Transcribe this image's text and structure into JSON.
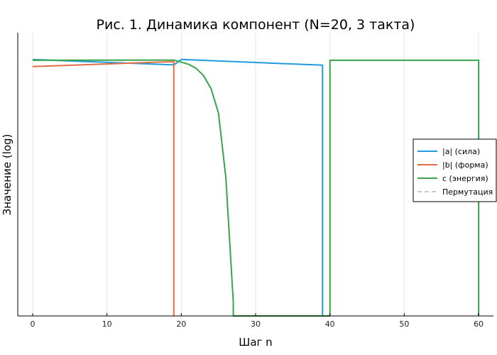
{
  "chart_data": {
    "type": "line",
    "title": "Рис. 1. Динамика компонент (N=20, 3 такта)",
    "xlabel": "Шаг n",
    "ylabel": "Значение (log)",
    "xlim": [
      -2,
      62
    ],
    "xticks": [
      0,
      10,
      20,
      30,
      40,
      50,
      60
    ],
    "ylim": [
      0,
      100
    ],
    "y_tick_labels": "none",
    "grid": "vertical only",
    "legend_position": "right",
    "series": [
      {
        "name": "|a| (сила)",
        "color": "#1f9bde",
        "style": "solid",
        "x": [
          0,
          19,
          20,
          39,
          39
        ],
        "y": [
          95.3,
          93.3,
          95.3,
          93.2,
          0
        ]
      },
      {
        "name": "|b| (форма)",
        "color": "#e26e46",
        "style": "solid",
        "x": [
          0,
          19,
          19
        ],
        "y": [
          92.7,
          94.5,
          0
        ]
      },
      {
        "name": "c (энергия)",
        "color": "#3aa34a",
        "style": "solid",
        "x": [
          0,
          19,
          20,
          21,
          22,
          23,
          24,
          25,
          26,
          27,
          27,
          40,
          40,
          60,
          60
        ],
        "y": [
          95.0,
          95.1,
          94.3,
          93.5,
          92.0,
          89.3,
          84.5,
          75.4,
          51.4,
          5.0,
          0,
          0,
          95.0,
          95.0,
          0
        ]
      },
      {
        "name": "Пермутация",
        "color": "#aaaaaa",
        "style": "dashed",
        "x": [],
        "y": []
      }
    ]
  }
}
